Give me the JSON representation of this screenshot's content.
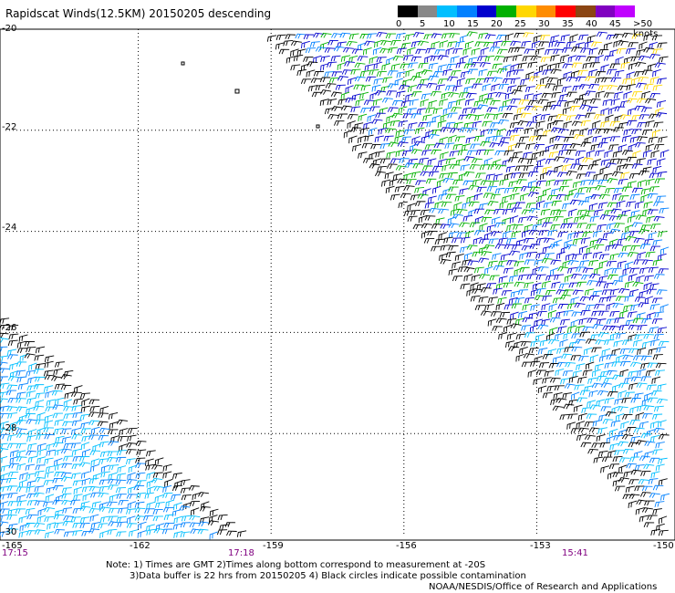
{
  "title": "Rapidscat Winds(12.5KM) 20150205 descending",
  "legend": {
    "ticks": [
      "0",
      "5",
      "10",
      "15",
      "20",
      "25",
      "30",
      "35",
      "40",
      "45",
      ">50 knots"
    ],
    "colors": [
      "#000000",
      "#888888",
      "#00bfff",
      "#0080ff",
      "#0000cd",
      "#00b000",
      "#ffd700",
      "#ff8c00",
      "#ff0000",
      "#8b4513",
      "#8000c0",
      "#c000ff"
    ]
  },
  "axes": {
    "y_labels": [
      "-20",
      "-22",
      "-24",
      "-26",
      "-28",
      "-30"
    ],
    "x_labels": [
      "-165",
      "-162",
      "-159",
      "-156",
      "-153",
      "-150"
    ],
    "lat_range": [
      -30,
      -20
    ],
    "lon_range": [
      -165,
      -150
    ]
  },
  "times": {
    "left": "17:15",
    "middle": "17:18",
    "right": "15:41"
  },
  "notes": {
    "line1": "Note: 1) Times are GMT 2)Times along bottom correspond to measurement at -20S",
    "line2": "3)Data buffer is 22 hrs from 20150205 4) Black circles indicate possible contamination",
    "line3": "NOAA/NESDIS/Office of Research and Applications"
  }
}
